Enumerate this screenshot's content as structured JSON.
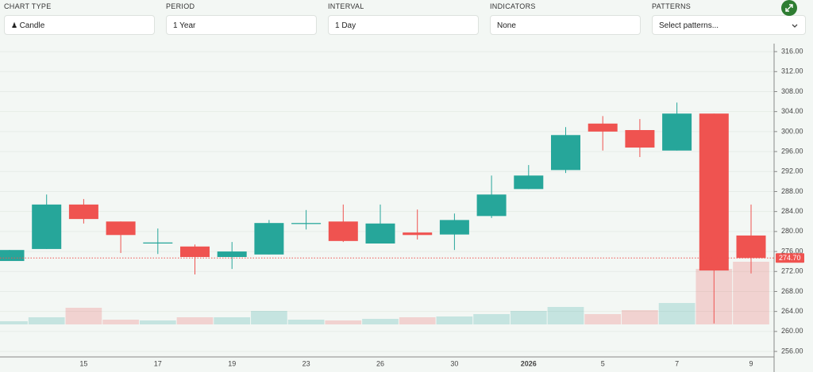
{
  "controls": [
    {
      "label": "CHART TYPE",
      "value": "Candle"
    },
    {
      "label": "PERIOD",
      "value": "1 Year"
    },
    {
      "label": "INTERVAL",
      "value": "1 Day"
    },
    {
      "label": "INDICATORS",
      "value": "None"
    },
    {
      "label": "PATTERNS",
      "value": "Select patterns..."
    }
  ],
  "chart_data": {
    "type": "candlestick",
    "categories": [
      null,
      null,
      "15",
      null,
      "17",
      null,
      "19",
      null,
      "23",
      null,
      "26",
      null,
      "30",
      null,
      "2026",
      null,
      "5",
      null,
      "7",
      null,
      "9"
    ],
    "open": [
      274.1,
      276.5,
      285.4,
      282.0,
      277.6,
      277.0,
      274.9,
      275.4,
      281.5,
      282.0,
      277.6,
      279.8,
      279.4,
      283.1,
      288.5,
      292.3,
      301.6,
      300.3,
      296.2,
      303.6,
      279.2
    ],
    "high": [
      276.3,
      287.4,
      286.5,
      282.0,
      280.6,
      277.4,
      277.9,
      282.3,
      284.3,
      285.4,
      285.4,
      284.4,
      283.6,
      291.2,
      293.3,
      300.9,
      303.1,
      302.5,
      305.8,
      303.6,
      285.4
    ],
    "low": [
      274.1,
      276.5,
      281.6,
      275.7,
      275.5,
      271.4,
      272.5,
      275.4,
      280.4,
      277.9,
      277.6,
      278.4,
      276.3,
      282.7,
      288.5,
      291.7,
      296.2,
      294.9,
      296.2,
      261.6,
      271.6
    ],
    "close": [
      276.3,
      285.4,
      282.5,
      279.3,
      277.8,
      274.9,
      276.0,
      281.7,
      281.7,
      278.1,
      281.6,
      279.3,
      282.3,
      287.4,
      291.2,
      299.3,
      300.0,
      296.8,
      303.6,
      272.2,
      274.7
    ],
    "volume": [
      4,
      9,
      21,
      6,
      5,
      9,
      9,
      17,
      6,
      5,
      7,
      9,
      10,
      13,
      17,
      22,
      13,
      18,
      27,
      70,
      79
    ],
    "up_color": "#26a69a",
    "down_color": "#ef5350",
    "ylim": [
      254.9,
      317.6
    ],
    "yticks": [
      {
        "value": 256,
        "label": "256.00"
      },
      {
        "value": 260,
        "label": "260.00"
      },
      {
        "value": 264,
        "label": "264.00"
      },
      {
        "value": 268,
        "label": "268.00"
      },
      {
        "value": 272,
        "label": "272.00"
      },
      {
        "value": 276,
        "label": "276.00"
      },
      {
        "value": 280,
        "label": "280.00"
      },
      {
        "value": 284,
        "label": "284.00"
      },
      {
        "value": 288,
        "label": "288.00"
      },
      {
        "value": 292,
        "label": "292.00"
      },
      {
        "value": 296,
        "label": "296.00"
      },
      {
        "value": 300,
        "label": "300.00"
      },
      {
        "value": 304,
        "label": "304.00"
      },
      {
        "value": 308,
        "label": "308.00"
      },
      {
        "value": 312,
        "label": "312.00"
      },
      {
        "value": 316,
        "label": "316.00"
      }
    ],
    "last_price": {
      "value": 274.7,
      "label": "274.70"
    },
    "grid": true
  }
}
